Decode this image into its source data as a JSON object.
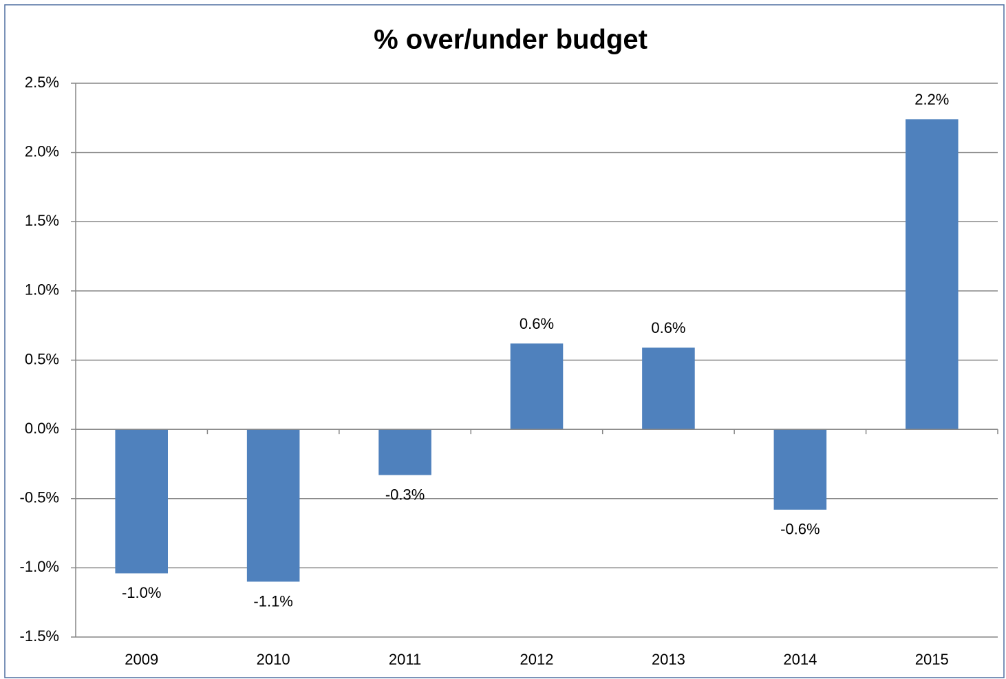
{
  "chart_data": {
    "type": "bar",
    "title": "% over/under budget",
    "categories": [
      "2009",
      "2010",
      "2011",
      "2012",
      "2013",
      "2014",
      "2015"
    ],
    "values": [
      -1.04,
      -1.1,
      -0.33,
      0.62,
      0.59,
      -0.58,
      2.24
    ],
    "value_labels": [
      "-1.0%",
      "-1.1%",
      "-0.3%",
      "0.6%",
      "0.6%",
      "-0.6%",
      "2.2%"
    ],
    "color": "#4f81bd",
    "ylim": [
      -1.5,
      2.5
    ],
    "yticks": [
      {
        "value": -1.5,
        "label": "-1.5%"
      },
      {
        "value": -1,
        "label": "-1.0%"
      },
      {
        "value": -0.5,
        "label": "-0.5%"
      },
      {
        "value": 0,
        "label": "0.0%"
      },
      {
        "value": 0.5,
        "label": "0.5%"
      },
      {
        "value": 1,
        "label": "1.0%"
      },
      {
        "value": 1.5,
        "label": "1.5%"
      },
      {
        "value": 2,
        "label": "2.0%"
      },
      {
        "value": 2.5,
        "label": "2.5%"
      }
    ],
    "grid": true
  }
}
